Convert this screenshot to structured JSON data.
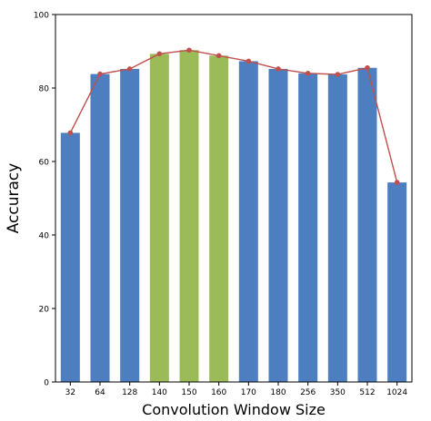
{
  "chart_data": {
    "type": "bar",
    "xlabel": "Convolution Window Size",
    "ylabel": "Accuracy",
    "ylim": [
      0,
      100
    ],
    "yticks": [
      0,
      20,
      40,
      60,
      80,
      100
    ],
    "grid": false,
    "categories": [
      "32",
      "64",
      "128",
      "140",
      "150",
      "160",
      "170",
      "180",
      "256",
      "350",
      "512",
      "1024"
    ],
    "values": [
      67.8,
      83.8,
      85.2,
      89.3,
      90.3,
      88.8,
      87.3,
      85.2,
      84.0,
      83.7,
      85.5,
      54.3
    ],
    "highlighted": [
      false,
      false,
      false,
      true,
      true,
      true,
      false,
      false,
      false,
      false,
      false,
      false
    ],
    "overlay_line": {
      "type": "line",
      "marker": "circle",
      "values": "same-as-bars"
    },
    "colors": {
      "bar": "#4d7fc0",
      "bar_highlight": "#9bbb59",
      "line": "#c0504d",
      "marker": "#c0504d",
      "axis": "#000000"
    }
  }
}
